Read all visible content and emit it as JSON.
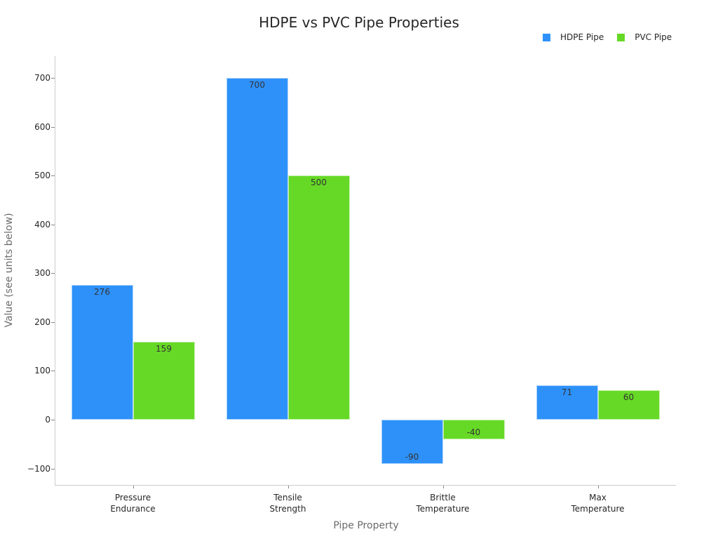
{
  "chart_data": {
    "type": "bar",
    "title": "HDPE vs PVC Pipe Properties",
    "xlabel": "Pipe Property",
    "ylabel": "Value (see units below)",
    "categories": [
      "Pressure\nEndurance",
      "Tensile\nStrength",
      "Brittle\nTemperature",
      "Max\nTemperature"
    ],
    "series": [
      {
        "name": "HDPE Pipe",
        "color": "#2e91fa",
        "values": [
          276,
          700,
          -90,
          71
        ]
      },
      {
        "name": "PVC Pipe",
        "color": "#66d926",
        "values": [
          159,
          500,
          -40,
          60
        ]
      }
    ],
    "yticks": [
      -100,
      0,
      100,
      200,
      300,
      400,
      500,
      600,
      700
    ],
    "ytick_labels": [
      "−100",
      "0",
      "100",
      "200",
      "300",
      "400",
      "500",
      "600",
      "700"
    ],
    "ylim": [
      -133,
      745
    ],
    "grid": false,
    "legend_position": "top-right",
    "data_labels": true
  }
}
